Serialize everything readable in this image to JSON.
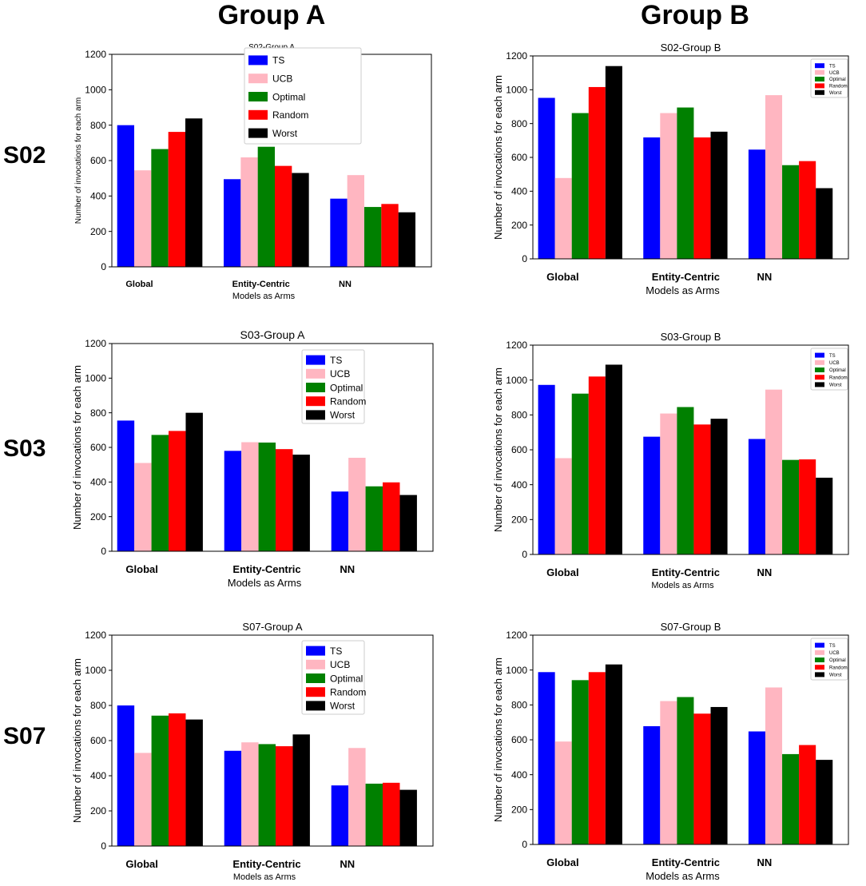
{
  "figure": {
    "column_headers": [
      "Group A",
      "Group B"
    ],
    "row_labels": [
      "S02",
      "S03",
      "S07"
    ]
  },
  "colors": {
    "TS": "#0000ff",
    "UCB": "#ffb6c1",
    "Optimal": "#008000",
    "Random": "#ff0000",
    "Worst": "#000000"
  },
  "chart_data": [
    {
      "type": "bar",
      "title": "S02-Group A",
      "xlabel": "Models as Arms",
      "ylabel": "Number of invocations for each arm",
      "ylim": [
        0,
        1200
      ],
      "yticks": [
        0,
        200,
        400,
        600,
        800,
        1000,
        1200
      ],
      "categories": [
        "Global",
        "Entity-Centric",
        "NN"
      ],
      "series": [
        {
          "name": "TS",
          "values": [
            800,
            495,
            385
          ]
        },
        {
          "name": "UCB",
          "values": [
            545,
            618,
            518
          ]
        },
        {
          "name": "Optimal",
          "values": [
            665,
            678,
            338
          ]
        },
        {
          "name": "Random",
          "values": [
            762,
            570,
            355
          ]
        },
        {
          "name": "Worst",
          "values": [
            838,
            530,
            308
          ]
        }
      ]
    },
    {
      "type": "bar",
      "title": "S02-Group B",
      "xlabel": "Models as Arms",
      "ylabel": "Number of invocations for each arm",
      "ylim": [
        0,
        1200
      ],
      "yticks": [
        0,
        200,
        400,
        600,
        800,
        1000,
        1200
      ],
      "categories": [
        "Global",
        "Entity-Centric",
        "NN"
      ],
      "series": [
        {
          "name": "TS",
          "values": [
            952,
            718,
            646
          ]
        },
        {
          "name": "UCB",
          "values": [
            478,
            862,
            968
          ]
        },
        {
          "name": "Optimal",
          "values": [
            862,
            895,
            554
          ]
        },
        {
          "name": "Random",
          "values": [
            1016,
            718,
            578
          ]
        },
        {
          "name": "Worst",
          "values": [
            1140,
            752,
            418
          ]
        }
      ]
    },
    {
      "type": "bar",
      "title": "S03-Group A",
      "xlabel": "Models as Arms",
      "ylabel": "Number of invocations for each arm",
      "ylim": [
        0,
        1200
      ],
      "yticks": [
        0,
        200,
        400,
        600,
        800,
        1000,
        1200
      ],
      "categories": [
        "Global",
        "Entity-Centric",
        "NN"
      ],
      "series": [
        {
          "name": "TS",
          "values": [
            755,
            580,
            345
          ]
        },
        {
          "name": "UCB",
          "values": [
            510,
            630,
            540
          ]
        },
        {
          "name": "Optimal",
          "values": [
            672,
            628,
            375
          ]
        },
        {
          "name": "Random",
          "values": [
            695,
            590,
            398
          ]
        },
        {
          "name": "Worst",
          "values": [
            800,
            558,
            325
          ]
        }
      ]
    },
    {
      "type": "bar",
      "title": "S03-Group B",
      "xlabel": "Models as Arms",
      "ylabel": "Number of invocations for each arm",
      "ylim": [
        0,
        1200
      ],
      "yticks": [
        0,
        200,
        400,
        600,
        800,
        1000,
        1200
      ],
      "categories": [
        "Global",
        "Entity-Centric",
        "NN"
      ],
      "series": [
        {
          "name": "TS",
          "values": [
            972,
            675,
            662
          ]
        },
        {
          "name": "UCB",
          "values": [
            552,
            808,
            945
          ]
        },
        {
          "name": "Optimal",
          "values": [
            922,
            845,
            542
          ]
        },
        {
          "name": "Random",
          "values": [
            1020,
            745,
            545
          ]
        },
        {
          "name": "Worst",
          "values": [
            1088,
            778,
            440
          ]
        }
      ]
    },
    {
      "type": "bar",
      "title": "S07-Group A",
      "xlabel": "Models as Arms",
      "ylabel": "Number of invocations for each arm",
      "ylim": [
        0,
        1200
      ],
      "yticks": [
        0,
        200,
        400,
        600,
        800,
        1000,
        1200
      ],
      "categories": [
        "Global",
        "Entity-Centric",
        "NN"
      ],
      "series": [
        {
          "name": "TS",
          "values": [
            800,
            542,
            345
          ]
        },
        {
          "name": "UCB",
          "values": [
            530,
            590,
            558
          ]
        },
        {
          "name": "Optimal",
          "values": [
            742,
            580,
            355
          ]
        },
        {
          "name": "Random",
          "values": [
            755,
            568,
            360
          ]
        },
        {
          "name": "Worst",
          "values": [
            720,
            635,
            320
          ]
        }
      ]
    },
    {
      "type": "bar",
      "title": "S07-Group B",
      "xlabel": "Models as Arms",
      "ylabel": "Number of invocations for each arm",
      "ylim": [
        0,
        1200
      ],
      "yticks": [
        0,
        200,
        400,
        600,
        800,
        1000,
        1200
      ],
      "categories": [
        "Global",
        "Entity-Centric",
        "NN"
      ],
      "series": [
        {
          "name": "TS",
          "values": [
            988,
            678,
            648
          ]
        },
        {
          "name": "UCB",
          "values": [
            590,
            822,
            900
          ]
        },
        {
          "name": "Optimal",
          "values": [
            942,
            845,
            518
          ]
        },
        {
          "name": "Random",
          "values": [
            988,
            750,
            570
          ]
        },
        {
          "name": "Worst",
          "values": [
            1032,
            788,
            485
          ]
        }
      ]
    }
  ]
}
